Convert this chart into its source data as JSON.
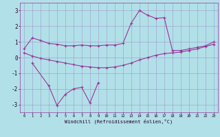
{
  "xlabel": "Windchill (Refroidissement éolien,°C)",
  "background_color": "#b2e0e8",
  "line_color": "#993399",
  "grid_color": "#9999cc",
  "xlim": [
    -0.5,
    23.5
  ],
  "ylim": [
    -3.5,
    3.5
  ],
  "yticks": [
    -3,
    -2,
    -1,
    0,
    1,
    2,
    3
  ],
  "xticks": [
    0,
    1,
    2,
    3,
    4,
    5,
    6,
    7,
    8,
    9,
    10,
    11,
    12,
    13,
    14,
    15,
    16,
    17,
    18,
    19,
    20,
    21,
    22,
    23
  ],
  "line1_x": [
    0,
    1,
    2,
    3,
    4,
    5,
    6,
    7,
    8,
    9,
    10,
    11,
    12,
    13,
    14,
    15,
    16,
    17,
    18,
    19,
    20,
    21,
    22,
    23
  ],
  "line1_y": [
    0.55,
    1.25,
    1.1,
    0.9,
    0.85,
    0.75,
    0.75,
    0.8,
    0.75,
    0.75,
    0.8,
    0.8,
    0.9,
    2.2,
    3.0,
    2.7,
    2.5,
    2.55,
    0.45,
    0.45,
    0.55,
    0.65,
    0.75,
    1.0
  ],
  "line2_x": [
    0,
    1,
    2,
    3,
    4,
    5,
    6,
    7,
    8,
    9,
    10,
    11,
    12,
    13,
    14,
    15,
    16,
    17,
    18,
    19,
    20,
    21,
    22,
    23
  ],
  "line2_y": [
    0.3,
    0.1,
    -0.05,
    -0.15,
    -0.25,
    -0.35,
    -0.45,
    -0.55,
    -0.6,
    -0.65,
    -0.65,
    -0.6,
    -0.5,
    -0.35,
    -0.15,
    0.0,
    0.15,
    0.25,
    0.3,
    0.35,
    0.45,
    0.55,
    0.7,
    0.85
  ],
  "line3_x": [
    1,
    3,
    4,
    5,
    6,
    7,
    8,
    9
  ],
  "line3_y": [
    -0.35,
    -1.8,
    -3.05,
    -2.35,
    -2.0,
    -1.9,
    -2.9,
    -1.6
  ]
}
